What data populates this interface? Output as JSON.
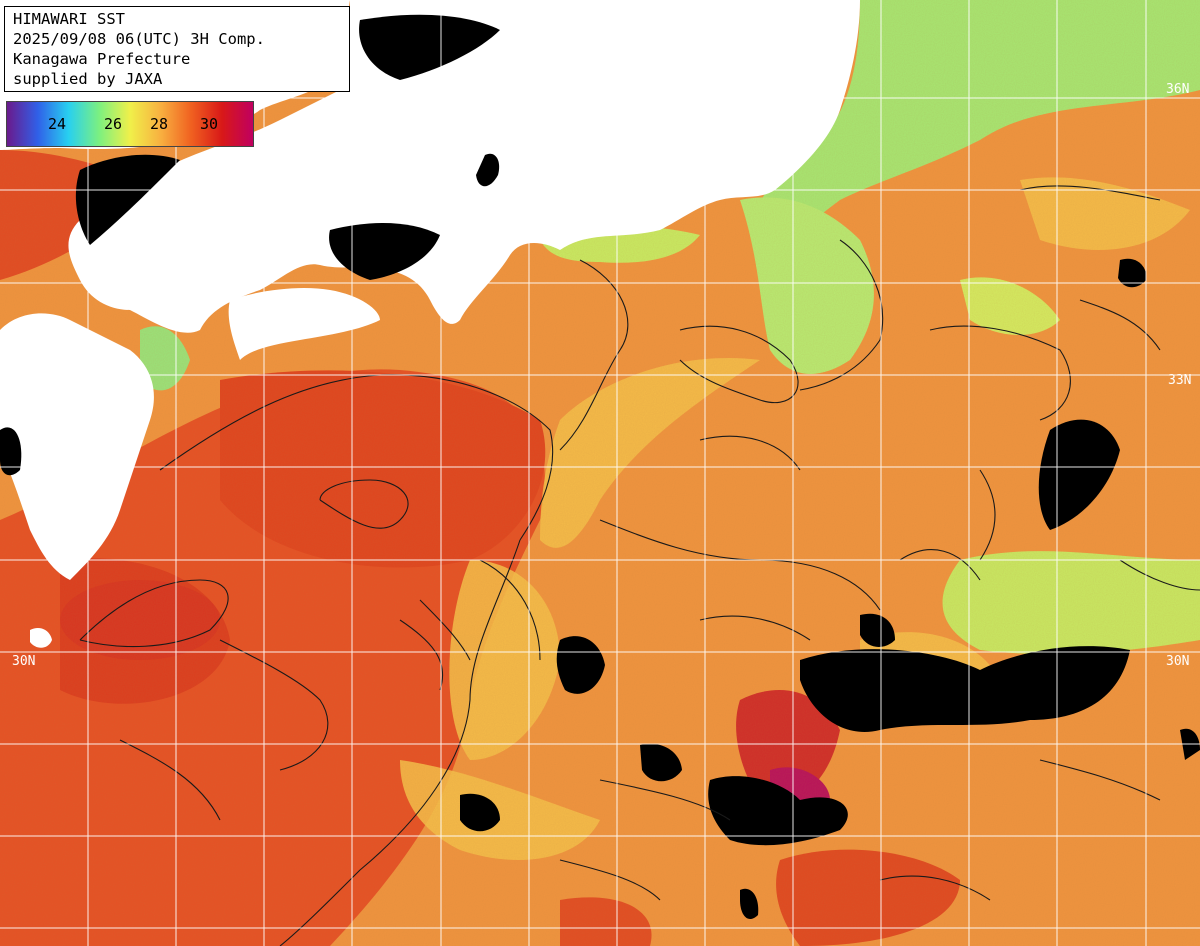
{
  "header": {
    "line1": "HIMAWARI SST",
    "line2": "2025/09/08 06(UTC) 3H Comp.",
    "line3": "Kanagawa Prefecture",
    "line4": "supplied by JAXA"
  },
  "legend": {
    "labels": [
      "24",
      "26",
      "28",
      "30"
    ],
    "colors": [
      "#6a1a8c",
      "#3060e8",
      "#28d0f0",
      "#7cf080",
      "#f0f04a",
      "#f8b040",
      "#f06020",
      "#d81818",
      "#c00060"
    ]
  },
  "latitude_labels": {
    "lat36": "36N",
    "lat33": "33N",
    "lat30": "30N",
    "lat30_right": "30N"
  },
  "colors": {
    "land": "#ffffff",
    "no_data": "#000000",
    "grid": "#ffffff",
    "contour": "#1a1a1a",
    "sst_low": "#a8ee70",
    "sst_mid": "#f5c24a",
    "sst_high": "#e84a20"
  }
}
